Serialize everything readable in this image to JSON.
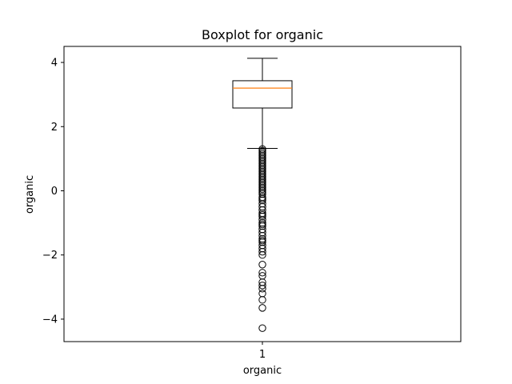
{
  "chart_data": {
    "type": "boxplot",
    "title": "Boxplot for organic",
    "xlabel": "organic",
    "ylabel": "organic",
    "categories": [
      "1"
    ],
    "ylim": [
      -4.7,
      4.5
    ],
    "yticks": [
      -4,
      -2,
      0,
      2,
      4
    ],
    "ytick_labels": [
      "−4",
      "−2",
      "0",
      "2",
      "4"
    ],
    "grid": false,
    "series": [
      {
        "whisker_low": 1.32,
        "q1": 2.58,
        "median": 3.2,
        "q3": 3.43,
        "whisker_high": 4.13,
        "outliers": [
          1.3,
          1.25,
          1.2,
          1.15,
          1.1,
          1.05,
          1.0,
          0.95,
          0.9,
          0.85,
          0.8,
          0.75,
          0.7,
          0.65,
          0.6,
          0.55,
          0.5,
          0.45,
          0.4,
          0.35,
          0.3,
          0.25,
          0.2,
          0.15,
          0.1,
          0.05,
          0.0,
          -0.05,
          -0.1,
          -0.2,
          -0.25,
          -0.3,
          -0.4,
          -0.5,
          -0.6,
          -0.7,
          -0.75,
          -0.8,
          -0.9,
          -1.0,
          -1.05,
          -1.1,
          -1.2,
          -1.3,
          -1.4,
          -1.5,
          -1.55,
          -1.6,
          -1.7,
          -1.8,
          -1.9,
          -2.0,
          -2.3,
          -2.55,
          -2.65,
          -2.85,
          -2.95,
          -3.05,
          -3.2,
          -3.4,
          -3.65,
          -4.28
        ]
      }
    ],
    "colors": {
      "box": "#000000",
      "median": "#ff7f0e",
      "outlier_edge": "#000000",
      "axes": "#000000"
    }
  }
}
